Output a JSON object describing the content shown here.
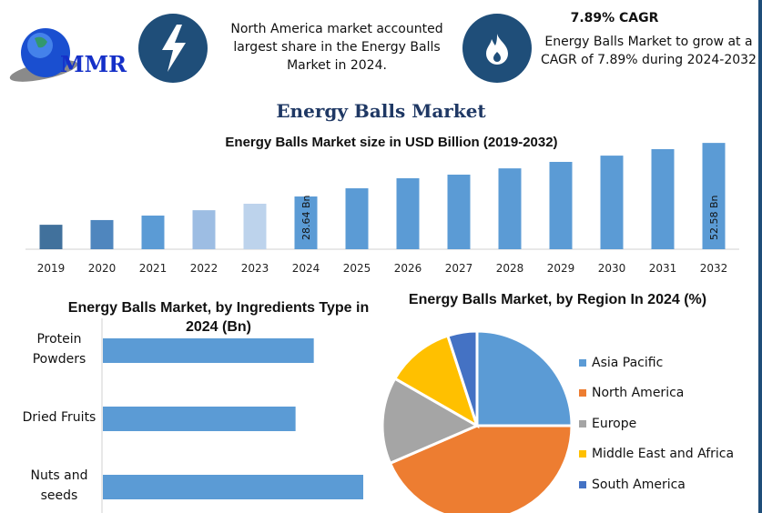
{
  "logo": {
    "text": "MMR"
  },
  "highlights": [
    {
      "icon": "lightning-icon",
      "text": "North America market accounted largest share in the Energy Balls Market in 2024."
    },
    {
      "icon": "flame-icon",
      "title": "7.89% CAGR",
      "text": "Energy Balls Market to grow at a CAGR of 7.89% during 2024-2032"
    }
  ],
  "main_title": "Energy Balls Market",
  "chart_data": [
    {
      "type": "bar",
      "title": "Energy Balls Market size in USD Billion (2019-2032)",
      "categories": [
        "2019",
        "2020",
        "2021",
        "2022",
        "2023",
        "2024",
        "2025",
        "2026",
        "2027",
        "2028",
        "2029",
        "2030",
        "2031",
        "2032"
      ],
      "values": [
        16.0,
        18.1,
        20.1,
        22.5,
        25.4,
        28.64,
        32.3,
        36.8,
        38.4,
        41.2,
        44.1,
        46.9,
        49.8,
        52.58
      ],
      "data_labels": {
        "2024": "28.64 Bn",
        "2032": "52.58 Bn"
      },
      "colors": [
        "#41719c",
        "#4f86be",
        "#5b9bd5",
        "#9dbde3",
        "#bdd3ec",
        "#5b9bd5",
        "#5b9bd5",
        "#5b9bd5",
        "#5b9bd5",
        "#5b9bd5",
        "#5b9bd5",
        "#5b9bd5",
        "#5b9bd5",
        "#5b9bd5"
      ],
      "grid": false
    },
    {
      "type": "bar",
      "orientation": "horizontal",
      "title": "Energy Balls Market, by Ingredients Type in 2024 (Bn)",
      "categories": [
        "Protein Powders",
        "Dried Fruits",
        "Nuts and seeds"
      ],
      "relative_values": [
        0.81,
        0.74,
        1.0
      ],
      "color": "#5b9bd5"
    },
    {
      "type": "pie",
      "title": "Energy Balls Market, by Region In 2024 (%)",
      "legend_position": "right",
      "slices": [
        {
          "label": "Asia Pacific",
          "value": 25.0,
          "color": "#5b9bd5"
        },
        {
          "label": "North America",
          "value": 43.5,
          "color": "#ed7d31"
        },
        {
          "label": "Europe",
          "value": 14.8,
          "color": "#a5a5a5"
        },
        {
          "label": "Middle East and Africa",
          "value": 11.7,
          "color": "#ffc000"
        },
        {
          "label": "South America",
          "value": 5.0,
          "color": "#4472c4"
        }
      ]
    }
  ]
}
